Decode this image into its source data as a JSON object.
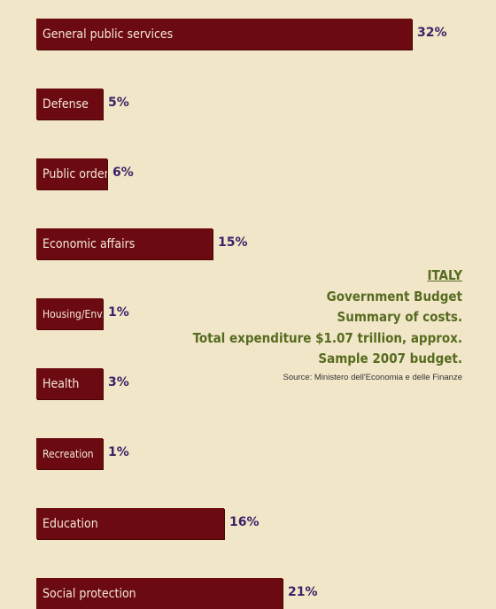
{
  "chart_data": {
    "type": "bar",
    "orientation": "horizontal",
    "title": "ITALY",
    "subtitle_lines": [
      "Government Budget",
      "Summary of costs.",
      "Total expenditure $1.07 trillion, approx.",
      "Sample 2007 budget."
    ],
    "source": "Source: Ministero dell'Economia e delle Finanze",
    "categories": [
      "General public services",
      "Defense",
      "Public order/safety",
      "Economic affairs",
      "Housing/Env.",
      "Health",
      "Recreation",
      "Education",
      "Social protection"
    ],
    "values": [
      32,
      5,
      6,
      15,
      1,
      3,
      1,
      16,
      21
    ],
    "value_labels": [
      "32%",
      "5%",
      "6%",
      "15%",
      "1%",
      "3%",
      "1%",
      "16%",
      "21%"
    ],
    "unit": "%",
    "grid": false,
    "legend": "none",
    "colors": {
      "background": "#f2e6c9",
      "bar": "#6b0a10",
      "bar_text": "#f4e9d6",
      "value_text": "#3b2266",
      "title_text": "#556b1f"
    }
  }
}
